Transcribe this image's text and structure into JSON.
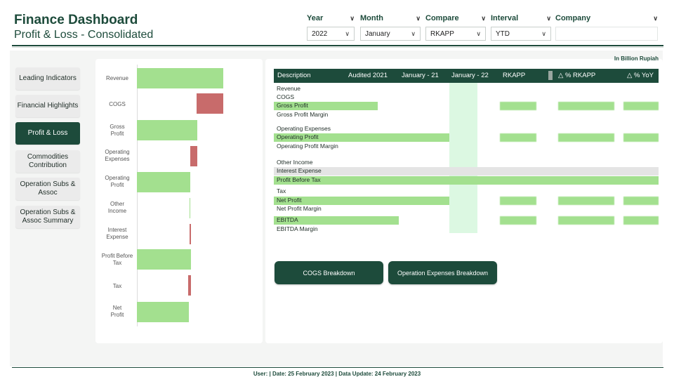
{
  "header": {
    "title": "Finance Dashboard",
    "subtitle": "Profit & Loss - Consolidated"
  },
  "filters": [
    {
      "label": "Year",
      "value": "2022"
    },
    {
      "label": "Month",
      "value": "January"
    },
    {
      "label": "Compare",
      "value": "RKAPP"
    },
    {
      "label": "Interval",
      "value": "YTD"
    },
    {
      "label": "Company",
      "value": ""
    }
  ],
  "nav": {
    "items": [
      {
        "label": "Leading Indicators",
        "active": false
      },
      {
        "label": "Financial Highlights",
        "active": false
      },
      {
        "label": "Profit & Loss",
        "active": true
      },
      {
        "label": "Commodities Contribution",
        "active": false
      },
      {
        "label": "Operation Subs & Assoc",
        "active": false
      },
      {
        "label": "Operation Subs & Assoc Summary",
        "active": false
      }
    ]
  },
  "chart_data": {
    "type": "bar",
    "orientation": "horizontal-waterfall",
    "categories": [
      "Revenue",
      "COGS",
      "Gross Profit",
      "Operating Expenses",
      "Operating Profit",
      "Other Income",
      "Interest Expense",
      "Profit Before Tax",
      "Tax",
      "Net Profit"
    ],
    "colors": {
      "positive": "#a3e08f",
      "negative": "#c86b6b"
    }
  },
  "table": {
    "unit_note": "In Billion Rupiah",
    "columns": [
      "Description",
      "Audited 2021",
      "January - 21",
      "January - 22",
      "RKAPP",
      "△ % RKAPP",
      "△ % YoY"
    ],
    "rows": [
      {
        "label": "Revenue",
        "style": "plain"
      },
      {
        "label": "COGS",
        "style": "plain"
      },
      {
        "label": "Gross Profit",
        "style": "highlight"
      },
      {
        "label": "Gross Profit Margin",
        "style": "plain"
      },
      {
        "label": "Operating Expenses",
        "style": "plain"
      },
      {
        "label": "Operating Profit",
        "style": "highlight"
      },
      {
        "label": "Operating Profit Margin",
        "style": "plain"
      },
      {
        "label": "Other Income",
        "style": "plain"
      },
      {
        "label": "Interest Expense",
        "style": "gray"
      },
      {
        "label": "Profit Before Tax",
        "style": "highlight"
      },
      {
        "label": "Tax",
        "style": "plain"
      },
      {
        "label": "Net Profit",
        "style": "highlight"
      },
      {
        "label": "Net Profit Margin",
        "style": "plain"
      },
      {
        "label": "EBITDA",
        "style": "highlight"
      },
      {
        "label": "EBITDA Margin",
        "style": "plain"
      }
    ]
  },
  "buttons": {
    "cogs": "COGS Breakdown",
    "opex": "Operation Expenses Breakdown"
  },
  "footer": {
    "text": "User:   |  Date: 25 February 2023  |  Data Update: 24 February 2023"
  },
  "colors": {
    "accent": "#1d4b3b",
    "positive": "#a3e08f",
    "negative": "#c86b6b"
  }
}
